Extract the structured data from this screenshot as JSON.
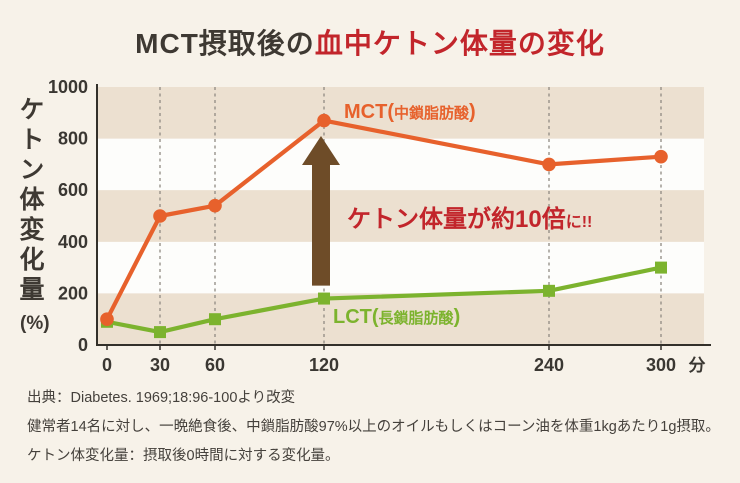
{
  "title": {
    "prefix": "MCT摂取後の",
    "highlight": "血中ケトン体量の変化"
  },
  "colors": {
    "background": "#f7f2e9",
    "stripe_beige": "#ece0d0",
    "stripe_white": "#fdfdfb",
    "axis": "#33302a",
    "gridline": "#8f8a82",
    "mct_orange": "#e7612c",
    "lct_green": "#7cb32e",
    "accent_red": "#c2252b",
    "arrow_brown": "#6e4c28"
  },
  "chart_data": {
    "type": "line",
    "title": "MCT摂取後の血中ケトン体量の変化",
    "x": [
      0,
      30,
      60,
      120,
      240,
      300
    ],
    "x_tick_labels": [
      "0",
      "30",
      "60",
      "120",
      "240",
      "300"
    ],
    "x_unit": "分",
    "xlabel": "",
    "ylabel": "ケトン体変化量",
    "ylabel_unit": "(%)",
    "ylim": [
      0,
      1000
    ],
    "y_ticks": [
      0,
      200,
      400,
      600,
      800,
      1000
    ],
    "grid": "dashed-vertical-at-x-ticks",
    "background_bands": [
      [
        0,
        200
      ],
      [
        400,
        600
      ],
      [
        800,
        1000
      ]
    ],
    "legend_position": "inline-next-to-lines",
    "series": [
      {
        "name": "LCT",
        "label": {
          "pre": "LCT(",
          "inner": "長鎖脂肪酸",
          "post": ")"
        },
        "marker": "square",
        "color": "#7cb32e",
        "values": [
          90,
          50,
          100,
          180,
          210,
          300
        ]
      },
      {
        "name": "MCT",
        "label": {
          "pre": "MCT(",
          "inner": "中鎖脂肪酸",
          "post": ")"
        },
        "marker": "circle",
        "color": "#e7612c",
        "values": [
          100,
          500,
          540,
          870,
          700,
          730
        ]
      }
    ],
    "annotation": {
      "text_main": "ケトン体量が約10倍",
      "text_suffix": "に!!",
      "arrow_at_x": 120,
      "arrow_from_value": 230,
      "arrow_to_value": 810
    }
  },
  "footer": {
    "lines": [
      "出典：Diabetes. 1969;18:96-100より改変",
      "健常者14名に対し、一晩絶食後、中鎖脂肪酸97%以上のオイルもしくはコーン油を体重1kgあたり1g摂取。",
      "ケトン体変化量：摂取後0時間に対する変化量。"
    ]
  }
}
